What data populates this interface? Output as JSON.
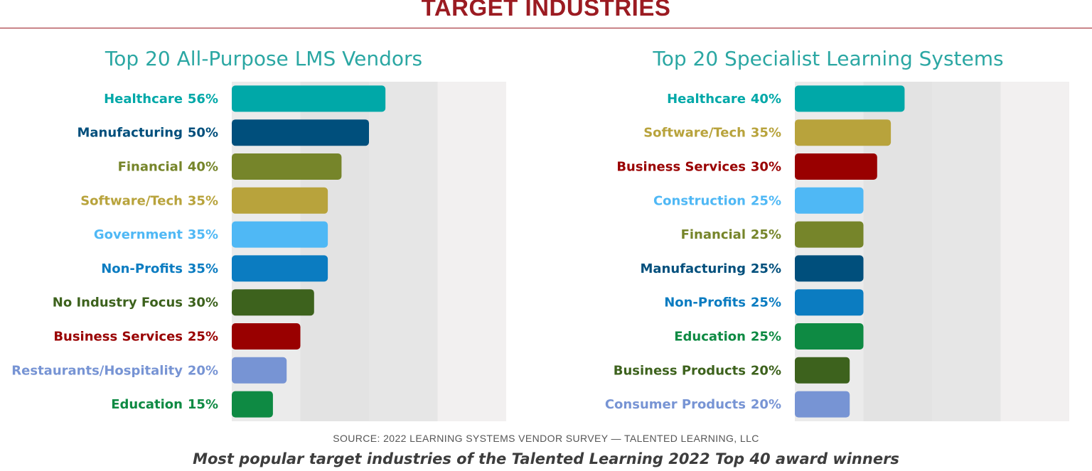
{
  "page": {
    "title": "TARGET INDUSTRIES",
    "title_color": "#9b1b22",
    "source": "SOURCE: 2022 LEARNING SYSTEMS VENDOR SURVEY — TALENTED LEARNING, LLC",
    "caption": "Most popular target industries of the Talented Learning 2022 Top 40 award winners"
  },
  "chart_data": [
    {
      "type": "bar",
      "orientation": "horizontal",
      "title": "Top 20 All-Purpose LMS Vendors",
      "title_color": "#2ba7a3",
      "xlim": [
        0,
        100
      ],
      "grid": true,
      "categories": [
        "Healthcare",
        "Manufacturing",
        "Financial",
        "Software/Tech",
        "Government",
        "Non-Profits",
        "No Industry Focus",
        "Business Services",
        "Restaurants/Hospitality",
        "Education"
      ],
      "values": [
        56,
        50,
        40,
        35,
        35,
        35,
        30,
        25,
        20,
        15
      ],
      "value_labels": [
        "56%",
        "50%",
        "40%",
        "35%",
        "35%",
        "35%",
        "30%",
        "25%",
        "20%",
        "15%"
      ],
      "colors": [
        "#00a8a8",
        "#004f7c",
        "#76852a",
        "#b8a33c",
        "#4fb8f5",
        "#0b7cc1",
        "#3d621d",
        "#990000",
        "#7794d4",
        "#0e8a43"
      ]
    },
    {
      "type": "bar",
      "orientation": "horizontal",
      "title": "Top 20 Specialist Learning Systems",
      "title_color": "#2ba7a3",
      "xlim": [
        0,
        100
      ],
      "grid": true,
      "categories": [
        "Healthcare",
        "Software/Tech",
        "Business Services",
        "Construction",
        "Financial",
        "Manufacturing",
        "Non-Profits",
        "Education",
        "Business Products",
        "Consumer Products"
      ],
      "values": [
        40,
        35,
        30,
        25,
        25,
        25,
        25,
        25,
        20,
        20
      ],
      "value_labels": [
        "40%",
        "35%",
        "30%",
        "25%",
        "25%",
        "25%",
        "25%",
        "25%",
        "20%",
        "20%"
      ],
      "colors": [
        "#00a8a8",
        "#b8a33c",
        "#990000",
        "#4fb8f5",
        "#76852a",
        "#004f7c",
        "#0b7cc1",
        "#0e8a43",
        "#3d621d",
        "#7794d4"
      ]
    }
  ]
}
